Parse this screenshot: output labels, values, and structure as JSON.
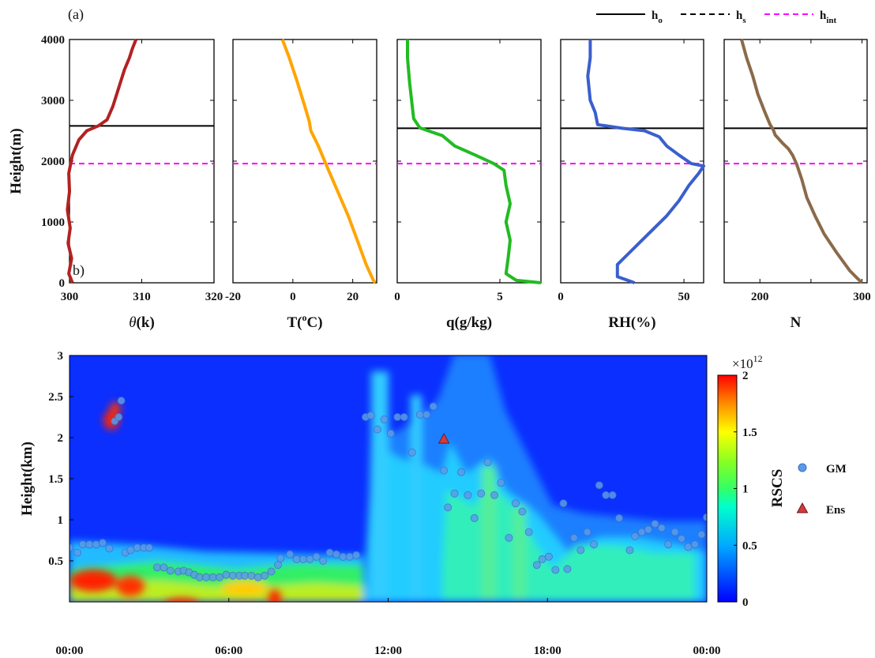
{
  "panel_a_label": "(a)",
  "panel_b_label": "(b)",
  "chart_data": [
    {
      "type": "line",
      "panel": "a",
      "legend": {
        "placement": "top-right",
        "items": [
          {
            "base": "h",
            "sub": "o",
            "style": "solid",
            "color": "#000000"
          },
          {
            "base": "h",
            "sub": "s",
            "style": "dashed",
            "color": "#000000"
          },
          {
            "base": "h",
            "sub": "int",
            "style": "dashed",
            "color": "#ff00ff"
          }
        ]
      },
      "ylabel": "Height(m)",
      "ylim": [
        0,
        4000
      ],
      "yticks": [
        0,
        1000,
        2000,
        3000,
        4000
      ],
      "h_o": 2580,
      "h_s": 2540,
      "h_int": 1960,
      "subplots": [
        {
          "xlabel": {
            "prefix": "",
            "symbol": "θ",
            "suffix": "(k)",
            "sup": ""
          },
          "xlim": [
            300,
            320
          ],
          "xticks": [
            300,
            310,
            320
          ],
          "color": "#b22222",
          "hline_value": 2580,
          "points": [
            [
              300.4,
              0
            ],
            [
              299.9,
              150
            ],
            [
              300.3,
              400
            ],
            [
              299.8,
              650
            ],
            [
              300.1,
              900
            ],
            [
              299.7,
              1200
            ],
            [
              300.0,
              1500
            ],
            [
              299.9,
              1800
            ],
            [
              300.4,
              2100
            ],
            [
              301.3,
              2350
            ],
            [
              302.4,
              2500
            ],
            [
              304.0,
              2580
            ],
            [
              305.2,
              2680
            ],
            [
              306.0,
              2900
            ],
            [
              306.8,
              3200
            ],
            [
              307.6,
              3500
            ],
            [
              308.3,
              3700
            ],
            [
              308.7,
              3850
            ],
            [
              309.2,
              4000
            ]
          ]
        },
        {
          "xlabel": {
            "prefix": "T(",
            "symbol": "",
            "suffix": "C)",
            "sup": "o"
          },
          "xlim": [
            -20,
            28
          ],
          "xticks": [
            -20,
            0,
            20
          ],
          "color": "#ffa500",
          "hline_value": null,
          "points": [
            [
              27.5,
              0
            ],
            [
              26.8,
              50
            ],
            [
              24.5,
              300
            ],
            [
              21.5,
              700
            ],
            [
              18.5,
              1100
            ],
            [
              15.0,
              1500
            ],
            [
              11.5,
              1900
            ],
            [
              8.5,
              2250
            ],
            [
              6.0,
              2500
            ],
            [
              5.5,
              2650
            ],
            [
              4.0,
              2900
            ],
            [
              1.5,
              3300
            ],
            [
              -1.2,
              3700
            ],
            [
              -3.5,
              4000
            ]
          ]
        },
        {
          "xlabel": {
            "prefix": "q(g/kg)",
            "symbol": "",
            "suffix": "",
            "sup": ""
          },
          "xlim": [
            0,
            7
          ],
          "xticks": [
            0,
            5
          ],
          "color": "#22bb22",
          "hline_value": 2540,
          "points": [
            [
              7.0,
              0
            ],
            [
              5.8,
              40
            ],
            [
              5.3,
              150
            ],
            [
              5.4,
              400
            ],
            [
              5.5,
              700
            ],
            [
              5.3,
              1000
            ],
            [
              5.5,
              1300
            ],
            [
              5.3,
              1600
            ],
            [
              5.2,
              1850
            ],
            [
              4.7,
              1960
            ],
            [
              3.8,
              2100
            ],
            [
              2.8,
              2250
            ],
            [
              2.2,
              2420
            ],
            [
              1.5,
              2500
            ],
            [
              1.1,
              2550
            ],
            [
              0.8,
              2700
            ],
            [
              0.7,
              3000
            ],
            [
              0.6,
              3300
            ],
            [
              0.5,
              3700
            ],
            [
              0.5,
              4000
            ]
          ]
        },
        {
          "xlabel": {
            "prefix": "RH(%)",
            "symbol": "",
            "suffix": "",
            "sup": ""
          },
          "xlim": [
            0,
            58
          ],
          "xticks": [
            0,
            50
          ],
          "color": "#3a5fcd",
          "hline_value": 2540,
          "points": [
            [
              30,
              0
            ],
            [
              23,
              100
            ],
            [
              23,
              300
            ],
            [
              28,
              500
            ],
            [
              33,
              700
            ],
            [
              38,
              900
            ],
            [
              43,
              1100
            ],
            [
              48,
              1350
            ],
            [
              52,
              1600
            ],
            [
              56,
              1800
            ],
            [
              58,
              1920
            ],
            [
              53,
              1960
            ],
            [
              48,
              2100
            ],
            [
              43,
              2250
            ],
            [
              40,
              2400
            ],
            [
              34,
              2500
            ],
            [
              25,
              2540
            ],
            [
              15,
              2600
            ],
            [
              14,
              2800
            ],
            [
              12,
              3000
            ],
            [
              11,
              3400
            ],
            [
              12,
              3700
            ],
            [
              12,
              4000
            ]
          ]
        },
        {
          "xlabel": {
            "prefix": "N",
            "symbol": "",
            "suffix": "",
            "sup": ""
          },
          "xlim": [
            165,
            305
          ],
          "xticks": [
            200,
            250,
            300
          ],
          "xticklabels": [
            "200",
            "",
            "300"
          ],
          "color": "#8b6a4a",
          "hline_value": 2540,
          "points": [
            [
              300,
              0
            ],
            [
              295,
              80
            ],
            [
              288,
              200
            ],
            [
              275,
              500
            ],
            [
              263,
              800
            ],
            [
              254,
              1100
            ],
            [
              246,
              1400
            ],
            [
              241,
              1700
            ],
            [
              236,
              1950
            ],
            [
              232,
              2100
            ],
            [
              228,
              2200
            ],
            [
              222,
              2300
            ],
            [
              215,
              2430
            ],
            [
              213,
              2520
            ],
            [
              210,
              2600
            ],
            [
              205,
              2800
            ],
            [
              198,
              3100
            ],
            [
              193,
              3400
            ],
            [
              187,
              3700
            ],
            [
              182,
              4000
            ]
          ]
        }
      ]
    },
    {
      "type": "heatmap",
      "panel": "b",
      "ylabel": "Height(km)",
      "ylim": [
        0,
        3
      ],
      "yticks": [
        0.5,
        1,
        1.5,
        2,
        2.5,
        3
      ],
      "yticklabels": [
        "0.5",
        "1",
        "1.5",
        "2",
        "2.5",
        "3"
      ],
      "xlim": [
        0,
        24
      ],
      "xticks": [
        0,
        6,
        12,
        18,
        24
      ],
      "xticklabels": [
        "00:00",
        "06:00",
        "12:00",
        "18:00",
        "00:00"
      ],
      "colorbar": {
        "label": "RSCS",
        "range": [
          0,
          2
        ],
        "exponent_base": "×10",
        "exponent": "12",
        "ticks": [
          0,
          0.5,
          1,
          1.5,
          2
        ],
        "ticklabels": [
          "0",
          "0.5",
          "1",
          "1.5",
          "2"
        ]
      },
      "series": [
        {
          "name": "GM",
          "marker": "circle",
          "color": "#5b9be8",
          "points": [
            [
              0.0,
              0.66
            ],
            [
              0.3,
              0.6
            ],
            [
              0.5,
              0.7
            ],
            [
              0.75,
              0.7
            ],
            [
              1.0,
              0.7
            ],
            [
              1.25,
              0.72
            ],
            [
              1.5,
              0.65
            ],
            [
              1.7,
              2.2
            ],
            [
              1.85,
              2.25
            ],
            [
              1.95,
              2.45
            ],
            [
              2.1,
              0.6
            ],
            [
              2.3,
              0.63
            ],
            [
              2.55,
              0.66
            ],
            [
              2.8,
              0.66
            ],
            [
              3.0,
              0.66
            ],
            [
              3.3,
              0.42
            ],
            [
              3.55,
              0.42
            ],
            [
              3.8,
              0.38
            ],
            [
              4.1,
              0.37
            ],
            [
              4.3,
              0.38
            ],
            [
              4.5,
              0.36
            ],
            [
              4.7,
              0.33
            ],
            [
              4.9,
              0.3
            ],
            [
              5.15,
              0.3
            ],
            [
              5.4,
              0.3
            ],
            [
              5.65,
              0.3
            ],
            [
              5.9,
              0.33
            ],
            [
              6.15,
              0.32
            ],
            [
              6.4,
              0.32
            ],
            [
              6.6,
              0.32
            ],
            [
              6.85,
              0.32
            ],
            [
              7.1,
              0.3
            ],
            [
              7.35,
              0.32
            ],
            [
              7.6,
              0.37
            ],
            [
              7.85,
              0.45
            ],
            [
              7.95,
              0.53
            ],
            [
              8.3,
              0.58
            ],
            [
              8.55,
              0.52
            ],
            [
              8.8,
              0.52
            ],
            [
              9.05,
              0.52
            ],
            [
              9.3,
              0.55
            ],
            [
              9.55,
              0.5
            ],
            [
              9.8,
              0.6
            ],
            [
              10.05,
              0.58
            ],
            [
              10.3,
              0.55
            ],
            [
              10.55,
              0.55
            ],
            [
              10.8,
              0.57
            ],
            [
              11.15,
              2.25
            ],
            [
              11.35,
              2.27
            ],
            [
              11.6,
              2.1
            ],
            [
              11.85,
              2.22
            ],
            [
              12.1,
              2.05
            ],
            [
              12.35,
              2.25
            ],
            [
              12.6,
              2.25
            ],
            [
              12.9,
              1.82
            ],
            [
              13.2,
              2.28
            ],
            [
              13.45,
              2.28
            ],
            [
              13.7,
              2.38
            ],
            [
              14.1,
              1.6
            ],
            [
              14.25,
              1.15
            ],
            [
              14.5,
              1.32
            ],
            [
              14.75,
              1.58
            ],
            [
              15.0,
              1.3
            ],
            [
              15.25,
              1.02
            ],
            [
              15.5,
              1.32
            ],
            [
              15.75,
              1.7
            ],
            [
              16.0,
              1.3
            ],
            [
              16.25,
              1.45
            ],
            [
              16.55,
              0.78
            ],
            [
              16.8,
              1.2
            ],
            [
              17.05,
              1.1
            ],
            [
              17.3,
              0.85
            ],
            [
              17.6,
              0.45
            ],
            [
              17.8,
              0.52
            ],
            [
              18.05,
              0.55
            ],
            [
              18.3,
              0.39
            ],
            [
              18.6,
              1.2
            ],
            [
              18.75,
              0.4
            ],
            [
              19.0,
              0.78
            ],
            [
              19.25,
              0.63
            ],
            [
              19.5,
              0.85
            ],
            [
              19.75,
              0.7
            ],
            [
              19.95,
              1.42
            ],
            [
              20.2,
              1.3
            ],
            [
              20.45,
              1.3
            ],
            [
              20.7,
              1.02
            ],
            [
              21.1,
              0.63
            ],
            [
              21.3,
              0.8
            ],
            [
              21.55,
              0.85
            ],
            [
              21.8,
              0.88
            ],
            [
              22.05,
              0.95
            ],
            [
              22.3,
              0.9
            ],
            [
              22.55,
              0.7
            ],
            [
              22.8,
              0.85
            ],
            [
              23.05,
              0.77
            ],
            [
              23.3,
              0.67
            ],
            [
              23.55,
              0.7
            ],
            [
              23.8,
              0.82
            ],
            [
              24.0,
              1.03
            ]
          ]
        },
        {
          "name": "Ens",
          "marker": "triangle",
          "color": "#d23c3c",
          "points": [
            [
              14.1,
              1.98
            ]
          ]
        }
      ]
    }
  ]
}
